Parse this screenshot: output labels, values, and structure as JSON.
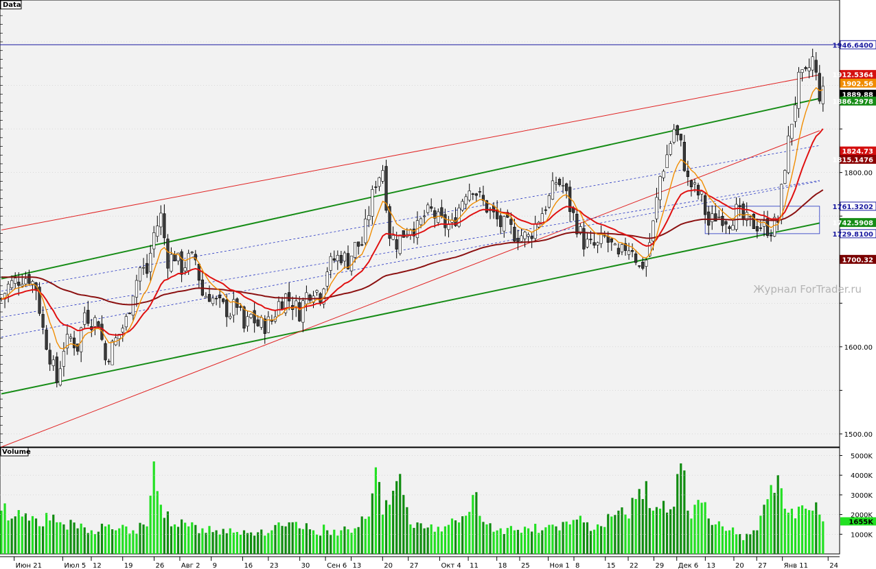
{
  "main_panel": {
    "label": "Data"
  },
  "volume_panel": {
    "label": "Volume"
  },
  "watermark": "Журнал ForTrader.ru",
  "colors": {
    "background": "#f2f2f2",
    "grid": "#c8c8c8",
    "bull_candle": "#ffffff",
    "bear_candle": "#3a3a3a",
    "ma_fast": "#f08c00",
    "ma_mid": "#e01010",
    "ma_slow": "#8b1010",
    "channel_green": "#168c16",
    "channel_red": "#e02020",
    "channel_blue": "#2030c0",
    "volume_bright": "#22e022",
    "volume_dark": "#108c10"
  },
  "chart_data": [
    {
      "type": "candlestick",
      "y_ticks": [
        "1800.00",
        "1600.00",
        "1500.00"
      ],
      "y_tick_values": [
        1800,
        1600,
        1500
      ],
      "ylim": [
        1485,
        1998
      ],
      "x_tick_labels": [
        "Июн 21",
        "Июл 5",
        "12",
        "19",
        "26",
        "Авг 2",
        "9",
        "16",
        "23",
        "30",
        "Сен 6",
        "13",
        "20",
        "27",
        "Окт 4",
        "11",
        "18",
        "25",
        "Ноя 1",
        "8",
        "15",
        "22",
        "29",
        "Дек 6",
        "13",
        "20",
        "27",
        "Янв 11",
        "24"
      ],
      "price_tags": [
        {
          "label": "1946.6400",
          "value": 1946.64,
          "bg": "#ffffff",
          "fg": "#1a1aa0",
          "border": "#1a1aa0"
        },
        {
          "label": "1912.5364",
          "value": 1912.54,
          "bg": "#d41010",
          "fg": "#ffffff",
          "border": "#d41010"
        },
        {
          "label": "1902.56",
          "value": 1902.56,
          "bg": "#f08c00",
          "fg": "#ffffff",
          "border": "#f08c00"
        },
        {
          "label": "1889.88",
          "value": 1889.88,
          "bg": "#000000",
          "fg": "#ffffff",
          "border": "#000000"
        },
        {
          "label": "1886.2978",
          "value": 1886.3,
          "bg": "#168c16",
          "fg": "#ffffff",
          "border": "#168c16"
        },
        {
          "label": "1824.73",
          "value": 1824.73,
          "bg": "#d41010",
          "fg": "#ffffff",
          "border": "#d41010"
        },
        {
          "label": "1815.1476",
          "value": 1815.15,
          "bg": "#8b0000",
          "fg": "#ffffff",
          "border": "#8b0000"
        },
        {
          "label": "1761.3202",
          "value": 1761.32,
          "bg": "#ffffff",
          "fg": "#1a1aa0",
          "border": "#1a1aa0"
        },
        {
          "label": "1742.5908",
          "value": 1742.59,
          "bg": "#168c16",
          "fg": "#ffffff",
          "border": "#168c16"
        },
        {
          "label": "1729.8100",
          "value": 1729.81,
          "bg": "#ffffff",
          "fg": "#1a1aa0",
          "border": "#1a1aa0"
        },
        {
          "label": "1700.32",
          "value": 1700.32,
          "bg": "#7a0000",
          "fg": "#ffffff",
          "border": "#7a0000"
        }
      ],
      "horizontal_line": {
        "value": 1946.64
      },
      "channel_lines": [
        {
          "style": "green",
          "from": [
            0,
            1678
          ],
          "to": [
            236,
            1885
          ]
        },
        {
          "style": "green",
          "from": [
            0,
            1546
          ],
          "to": [
            236,
            1742
          ]
        },
        {
          "style": "red",
          "from": [
            0,
            1734
          ],
          "to": [
            236,
            1912
          ]
        },
        {
          "style": "red",
          "from": [
            0,
            1485
          ],
          "to": [
            236,
            1848
          ]
        },
        {
          "style": "blue-dash",
          "from": [
            0,
            1664
          ],
          "to": [
            236,
            1831
          ]
        },
        {
          "style": "blue-dash",
          "from": [
            0,
            1634
          ],
          "to": [
            236,
            1791
          ]
        },
        {
          "style": "blue-dash",
          "from": [
            0,
            1611
          ],
          "to": [
            236,
            1790
          ]
        }
      ],
      "anchor_points": [
        [
          0,
          1655
        ],
        [
          2,
          1670
        ],
        [
          4,
          1675
        ],
        [
          6,
          1680
        ],
        [
          8,
          1680
        ],
        [
          10,
          1668
        ],
        [
          12,
          1620
        ],
        [
          14,
          1590
        ],
        [
          16,
          1560
        ],
        [
          18,
          1600
        ],
        [
          20,
          1610
        ],
        [
          22,
          1600
        ],
        [
          24,
          1640
        ],
        [
          26,
          1630
        ],
        [
          28,
          1630
        ],
        [
          30,
          1585
        ],
        [
          32,
          1600
        ],
        [
          34,
          1615
        ],
        [
          36,
          1630
        ],
        [
          38,
          1665
        ],
        [
          40,
          1690
        ],
        [
          42,
          1685
        ],
        [
          44,
          1730
        ],
        [
          46,
          1750
        ],
        [
          48,
          1700
        ],
        [
          50,
          1705
        ],
        [
          52,
          1690
        ],
        [
          54,
          1700
        ],
        [
          56,
          1700
        ],
        [
          58,
          1660
        ],
        [
          60,
          1660
        ],
        [
          62,
          1650
        ],
        [
          64,
          1645
        ],
        [
          66,
          1640
        ],
        [
          68,
          1650
        ],
        [
          70,
          1620
        ],
        [
          72,
          1635
        ],
        [
          74,
          1625
        ],
        [
          76,
          1625
        ],
        [
          78,
          1630
        ],
        [
          80,
          1650
        ],
        [
          82,
          1658
        ],
        [
          84,
          1650
        ],
        [
          86,
          1640
        ],
        [
          88,
          1660
        ],
        [
          90,
          1668
        ],
        [
          92,
          1660
        ],
        [
          94,
          1690
        ],
        [
          96,
          1700
        ],
        [
          98,
          1705
        ],
        [
          100,
          1698
        ],
        [
          102,
          1715
        ],
        [
          104,
          1718
        ],
        [
          106,
          1755
        ],
        [
          108,
          1790
        ],
        [
          110,
          1805
        ],
        [
          112,
          1730
        ],
        [
          114,
          1720
        ],
        [
          116,
          1730
        ],
        [
          118,
          1740
        ],
        [
          120,
          1735
        ],
        [
          122,
          1750
        ],
        [
          124,
          1755
        ],
        [
          126,
          1745
        ],
        [
          128,
          1740
        ],
        [
          130,
          1738
        ],
        [
          132,
          1760
        ],
        [
          134,
          1780
        ],
        [
          136,
          1785
        ],
        [
          138,
          1770
        ],
        [
          140,
          1760
        ],
        [
          142,
          1750
        ],
        [
          144,
          1740
        ],
        [
          146,
          1738
        ],
        [
          148,
          1730
        ],
        [
          150,
          1728
        ],
        [
          152,
          1725
        ],
        [
          154,
          1740
        ],
        [
          156,
          1755
        ],
        [
          158,
          1770
        ],
        [
          160,
          1790
        ],
        [
          162,
          1785
        ],
        [
          164,
          1760
        ],
        [
          166,
          1740
        ],
        [
          168,
          1720
        ],
        [
          170,
          1715
        ],
        [
          172,
          1715
        ],
        [
          174,
          1725
        ],
        [
          176,
          1715
        ],
        [
          178,
          1700
        ],
        [
          180,
          1715
        ],
        [
          182,
          1715
        ],
        [
          184,
          1690
        ],
        [
          186,
          1700
        ],
        [
          188,
          1740
        ],
        [
          190,
          1795
        ],
        [
          192,
          1820
        ],
        [
          194,
          1850
        ],
        [
          196,
          1830
        ],
        [
          198,
          1790
        ],
        [
          200,
          1780
        ],
        [
          202,
          1770
        ],
        [
          204,
          1740
        ],
        [
          206,
          1750
        ],
        [
          208,
          1750
        ],
        [
          210,
          1745
        ],
        [
          212,
          1755
        ],
        [
          214,
          1745
        ],
        [
          216,
          1742
        ],
        [
          218,
          1740
        ],
        [
          220,
          1738
        ],
        [
          222,
          1735
        ],
        [
          224,
          1745
        ],
        [
          226,
          1810
        ],
        [
          228,
          1860
        ],
        [
          230,
          1905
        ],
        [
          232,
          1910
        ],
        [
          234,
          1930
        ],
        [
          236,
          1890
        ],
        [
          237,
          1890
        ]
      ]
    },
    {
      "type": "bar",
      "y_ticks": [
        "5000K",
        "4000K",
        "3000K",
        "2000K",
        "1000K"
      ],
      "y_tick_values": [
        5000,
        4000,
        3000,
        2000,
        1000
      ],
      "ylim": [
        0,
        5400
      ],
      "current_tag": {
        "label": "1655K",
        "value": 1655,
        "bg": "#22e022",
        "fg": "#000000"
      },
      "anchor_volumes": [
        [
          0,
          2200
        ],
        [
          6,
          1900
        ],
        [
          10,
          1800
        ],
        [
          14,
          1700
        ],
        [
          18,
          1500
        ],
        [
          22,
          1300
        ],
        [
          26,
          1200
        ],
        [
          30,
          1400
        ],
        [
          34,
          1300
        ],
        [
          38,
          1200
        ],
        [
          42,
          1400
        ],
        [
          44,
          4700
        ],
        [
          46,
          2500
        ],
        [
          50,
          1500
        ],
        [
          54,
          1400
        ],
        [
          58,
          1300
        ],
        [
          62,
          1200
        ],
        [
          66,
          1300
        ],
        [
          70,
          1200
        ],
        [
          74,
          1100
        ],
        [
          78,
          1200
        ],
        [
          82,
          1400
        ],
        [
          86,
          1300
        ],
        [
          90,
          1200
        ],
        [
          94,
          1200
        ],
        [
          98,
          1200
        ],
        [
          102,
          1300
        ],
        [
          106,
          1900
        ],
        [
          108,
          4400
        ],
        [
          110,
          2000
        ],
        [
          112,
          2500
        ],
        [
          114,
          3700
        ],
        [
          116,
          3000
        ],
        [
          118,
          1500
        ],
        [
          120,
          1600
        ],
        [
          124,
          1500
        ],
        [
          128,
          1400
        ],
        [
          132,
          1600
        ],
        [
          136,
          3000
        ],
        [
          140,
          1500
        ],
        [
          144,
          1300
        ],
        [
          148,
          1200
        ],
        [
          152,
          1300
        ],
        [
          156,
          1200
        ],
        [
          160,
          1400
        ],
        [
          164,
          1500
        ],
        [
          168,
          1600
        ],
        [
          172,
          1500
        ],
        [
          176,
          1900
        ],
        [
          178,
          2200
        ],
        [
          180,
          2000
        ],
        [
          184,
          3300
        ],
        [
          186,
          3700
        ],
        [
          188,
          2200
        ],
        [
          190,
          2300
        ],
        [
          192,
          2100
        ],
        [
          194,
          2400
        ],
        [
          196,
          4600
        ],
        [
          198,
          2200
        ],
        [
          200,
          2500
        ],
        [
          202,
          2600
        ],
        [
          204,
          1800
        ],
        [
          206,
          1500
        ],
        [
          208,
          1400
        ],
        [
          210,
          1200
        ],
        [
          212,
          1000
        ],
        [
          214,
          700
        ],
        [
          216,
          1000
        ],
        [
          218,
          1200
        ],
        [
          220,
          2500
        ],
        [
          222,
          3500
        ],
        [
          224,
          4000
        ],
        [
          226,
          2300
        ],
        [
          228,
          2300
        ],
        [
          230,
          2400
        ],
        [
          232,
          2300
        ],
        [
          234,
          2200
        ],
        [
          236,
          2000
        ],
        [
          237,
          1655
        ]
      ]
    }
  ]
}
